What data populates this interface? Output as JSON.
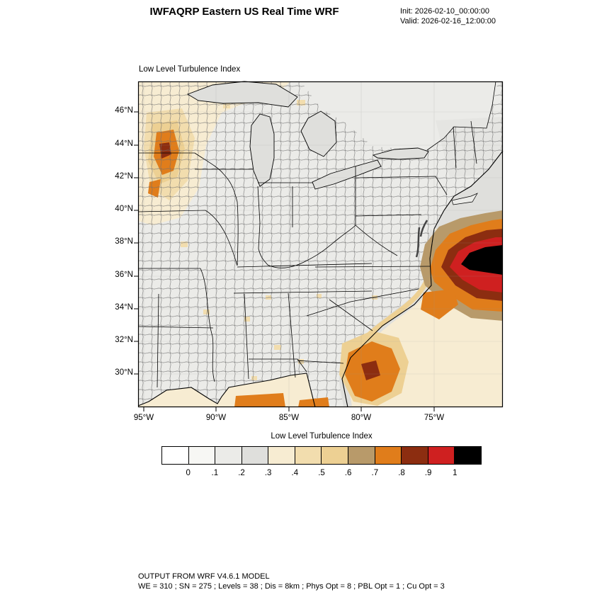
{
  "header": {
    "title": "IWFAQRP Eastern US Real Time WRF",
    "init": "Init: 2026-02-10_00:00:00",
    "valid": "Valid: 2026-02-16_12:00:00"
  },
  "map": {
    "title": "Low Level Turbulence Index",
    "lat_ticks": [
      "46°N",
      "44°N",
      "42°N",
      "40°N",
      "38°N",
      "36°N",
      "34°N",
      "32°N",
      "30°N"
    ],
    "lon_ticks": [
      "95°W",
      "90°W",
      "85°W",
      "80°W",
      "75°W"
    ]
  },
  "colorbar": {
    "title": "Low Level Turbulence Index",
    "tick_labels": [
      "0",
      ".1",
      ".2",
      ".3",
      ".4",
      ".5",
      ".6",
      ".7",
      ".8",
      ".9",
      "1"
    ],
    "colors": [
      "#ffffff",
      "#f7f7f4",
      "#ebebe8",
      "#dfdfdc",
      "#f7ecd2",
      "#f2ddae",
      "#edd093",
      "#b89a6a",
      "#e07d1b",
      "#8c2d10",
      "#cf2020",
      "#000000"
    ]
  },
  "footer": {
    "line1": "OUTPUT FROM WRF V4.6.1 MODEL",
    "line2": "WE = 310 ; SN = 275 ; Levels = 38 ; Dis = 8km ; Phys Opt = 8 ; PBL Opt = 1 ; Cu Opt = 3"
  },
  "chart_data": {
    "type": "heatmap",
    "title": "Low Level Turbulence Index",
    "x_ticks": [
      "95°W",
      "90°W",
      "85°W",
      "80°W",
      "75°W"
    ],
    "y_ticks": [
      "46°N",
      "44°N",
      "42°N",
      "40°N",
      "38°N",
      "36°N",
      "34°N",
      "32°N",
      "30°N"
    ],
    "color_levels": [
      0,
      0.1,
      0.2,
      0.3,
      0.4,
      0.5,
      0.6,
      0.7,
      0.8,
      0.9,
      1
    ],
    "colors": [
      "#ffffff",
      "#f7f7f4",
      "#ebebe8",
      "#dfdfdc",
      "#f7ecd2",
      "#f2ddae",
      "#edd093",
      "#b89a6a",
      "#e07d1b",
      "#8c2d10",
      "#cf2020",
      "#000000"
    ],
    "regions": [
      {
        "area": "Atlantic Ocean east of Virginia / North Carolina coast",
        "value": "maximum > 1 (black core) surrounded by 0.7–1 (red, dark red, orange)"
      },
      {
        "area": "Upper Midwest (Minnesota / Iowa / Wisconsin)",
        "value": "0.4–0.9 with local maximum ≈ 0.9 (dark red patch)"
      },
      {
        "area": "Atlantic off Georgia / NE Florida coast",
        "value": "0.7–0.9 blob with small 0.8–0.9 core"
      },
      {
        "area": "Gulf of Mexico near-coastal waters",
        "value": "0.3–0.8 streaks along bottom edge"
      },
      {
        "area": "Southeast offshore waters",
        "value": "≈ 0.3–0.4 (cream) broad area"
      },
      {
        "area": "Interior eastern US land",
        "value": "mostly 0–0.3 (gray shades) with scattered 0.4–0.5 specks"
      }
    ]
  }
}
